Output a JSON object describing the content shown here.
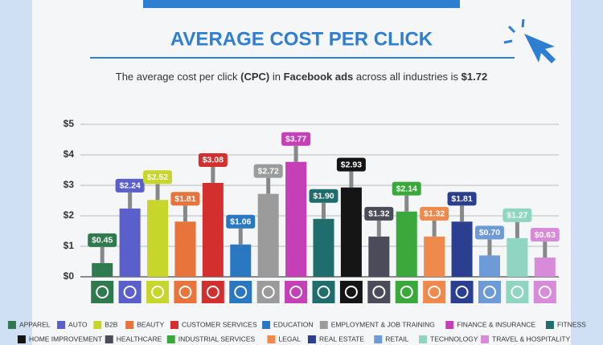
{
  "chart_data": {
    "type": "bar",
    "title": "AVERAGE COST PER CLICK",
    "subtitle_parts": [
      "The average cost per click ",
      "(CPC)",
      " in ",
      "Facebook ads",
      " across all industries is ",
      "$1.72"
    ],
    "categories": [
      "APPAREL",
      "AUTO",
      "B2B",
      "BEAUTY",
      "CUSTOMER SERVICES",
      "EDUCATION",
      "EMPLOYMENT & JOB TRAINING",
      "FINANCE & INSURANCE",
      "FITNESS",
      "HOME IMPROVEMENT",
      "HEALTHCARE",
      "INDUSTRIAL SERVICES",
      "LEGAL",
      "REAL ESTATE",
      "RETAIL",
      "TECHNOLOGY",
      "TRAVEL & HOSPITALITY"
    ],
    "values": [
      0.45,
      2.24,
      2.52,
      1.81,
      3.08,
      1.06,
      2.72,
      3.77,
      1.9,
      2.93,
      1.32,
      2.14,
      1.32,
      1.81,
      0.7,
      1.27,
      0.63
    ],
    "value_labels": [
      "$0.45",
      "$2.24",
      "$2.52",
      "$1.81",
      "$3.08",
      "$1.06",
      "$2.72",
      "$3.77",
      "$1.90",
      "$2.93",
      "$1.32",
      "$2.14",
      "$1.32",
      "$1.81",
      "$0.70",
      "$1.27",
      "$0.63"
    ],
    "colors": [
      "#2f7a4e",
      "#5b5fc9",
      "#c6d62b",
      "#e8743c",
      "#d42f2f",
      "#2a78c2",
      "#9b9b9b",
      "#c53fb6",
      "#1f6d6d",
      "#151515",
      "#4b4b5a",
      "#3aa83b",
      "#f08a4c",
      "#2a3f8f",
      "#6d9bd8",
      "#8fd5c1",
      "#d78bd8"
    ],
    "ylim": [
      0,
      5
    ],
    "yticks": [
      {
        "value": 0,
        "label": "$0"
      },
      {
        "value": 1,
        "label": "$1"
      },
      {
        "value": 2,
        "label": "$2"
      },
      {
        "value": 3,
        "label": "$3"
      },
      {
        "value": 4,
        "label": "$4"
      },
      {
        "value": 5,
        "label": "$5"
      }
    ],
    "grid": true
  }
}
